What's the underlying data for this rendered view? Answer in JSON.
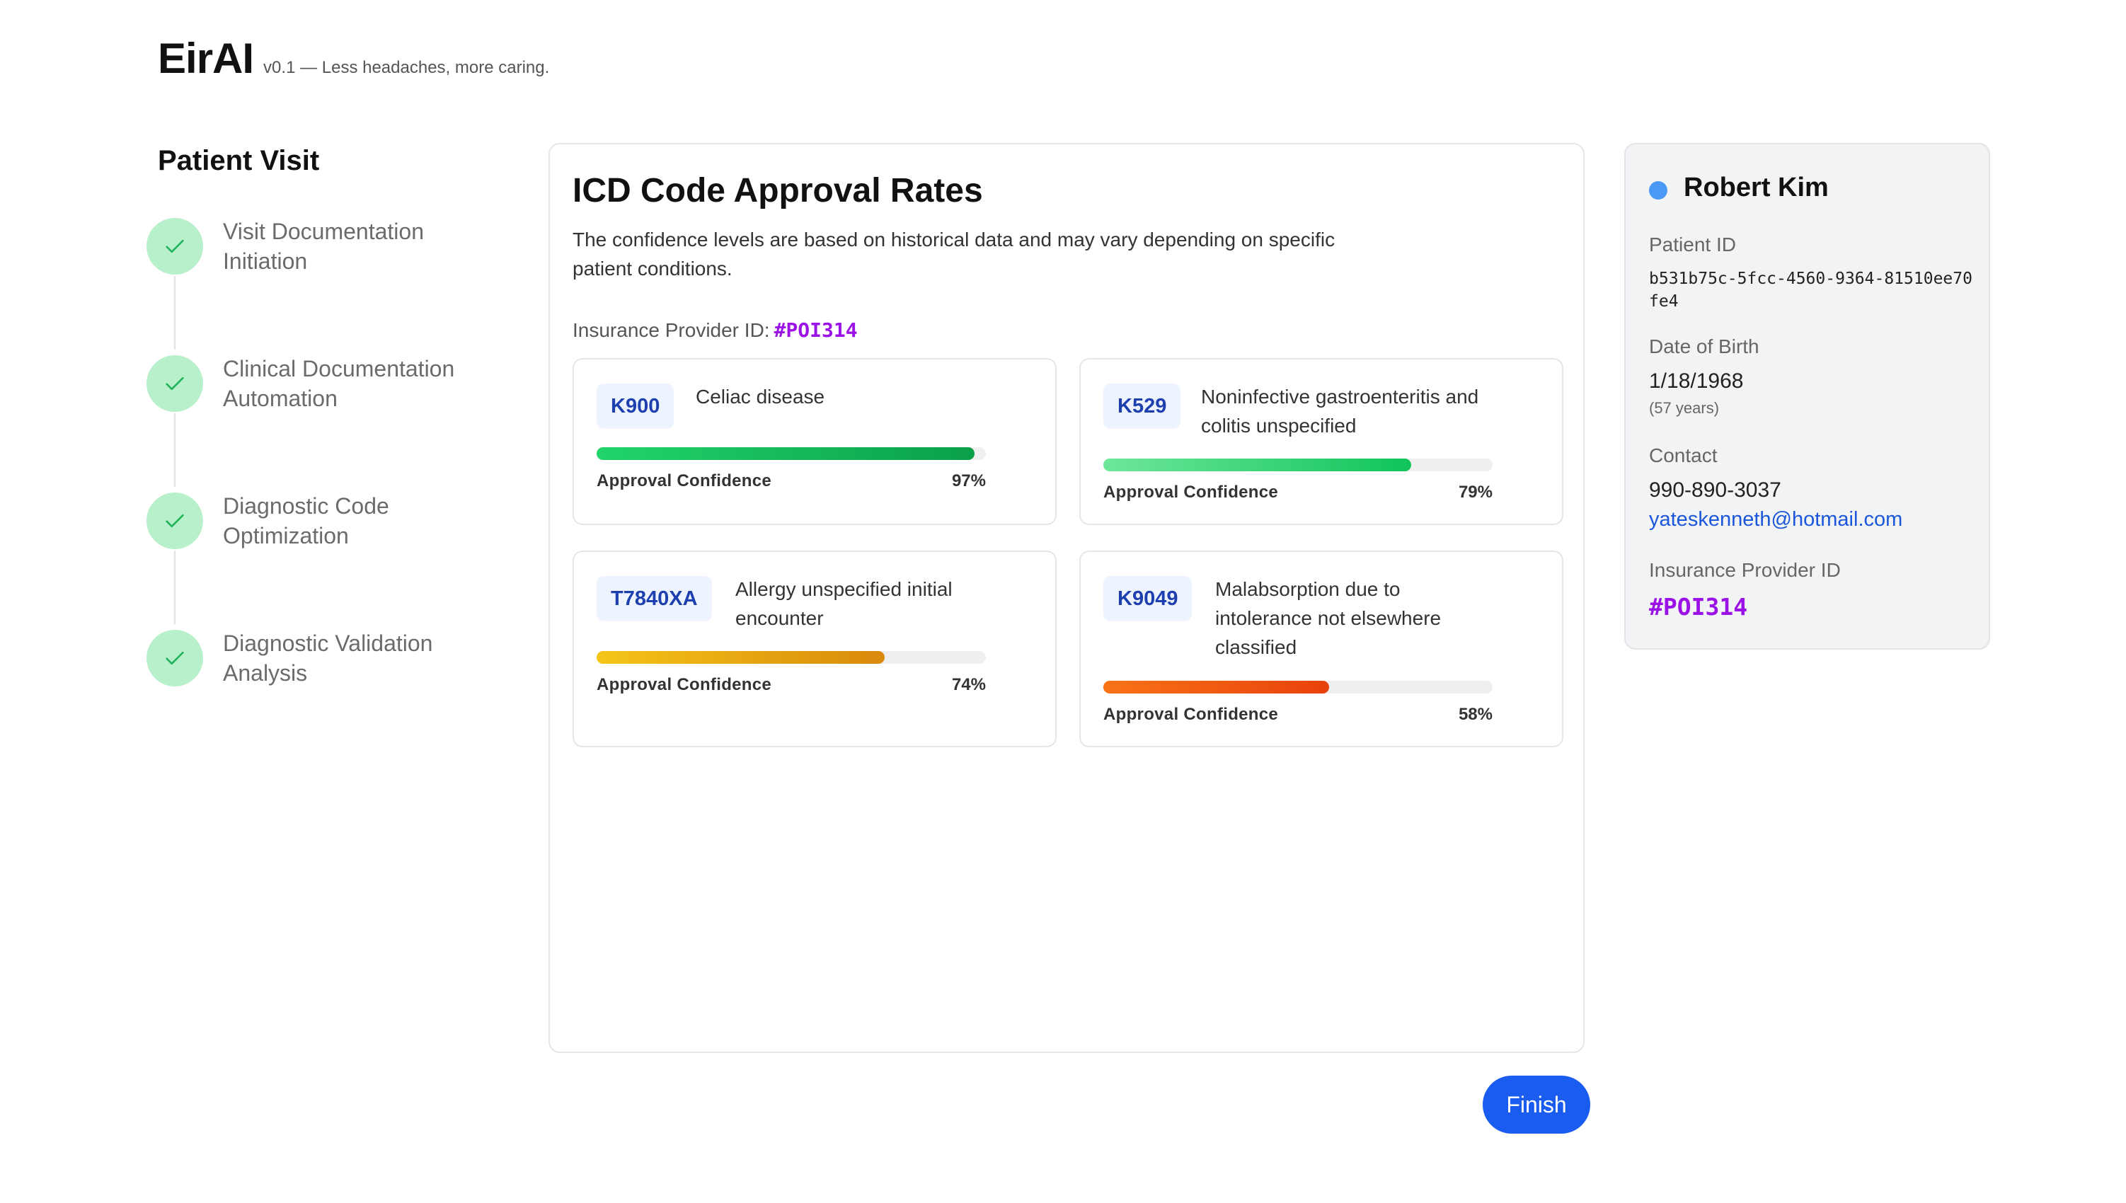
{
  "app": {
    "name": "EirAI",
    "tagline": "v0.1 — Less headaches, more caring."
  },
  "stepper": {
    "title": "Patient Visit",
    "steps": [
      {
        "label": "Visit Documentation Initiation",
        "status": "complete"
      },
      {
        "label": "Clinical Documentation Automation",
        "status": "complete"
      },
      {
        "label": "Diagnostic Code Optimization",
        "status": "complete"
      },
      {
        "label": "Diagnostic Validation Analysis",
        "status": "complete"
      }
    ]
  },
  "main": {
    "title": "ICD Code Approval Rates",
    "description": "The confidence levels are based on historical data and may vary depending on specific patient conditions.",
    "insurance_label": "Insurance Provider ID:",
    "insurance_id": "#POI314",
    "codes": [
      {
        "code": "K900",
        "description": "Celiac disease",
        "confidence_label": "Approval Confidence",
        "confidence_text": "97%",
        "confidence": 0.97,
        "bar_from": "#22d46a",
        "bar_to": "#0aa04a"
      },
      {
        "code": "K529",
        "description": "Noninfective gastroenteritis and colitis unspecified",
        "confidence_label": "Approval Confidence",
        "confidence_text": "79%",
        "confidence": 0.79,
        "bar_from": "#6ee79a",
        "bar_to": "#10c45a"
      },
      {
        "code": "T7840XA",
        "description": "Allergy unspecified initial encounter",
        "confidence_label": "Approval Confidence",
        "confidence_text": "74%",
        "confidence": 0.74,
        "bar_from": "#f5c518",
        "bar_to": "#d98a0b"
      },
      {
        "code": "K9049",
        "description": "Malabsorption due to intolerance not elsewhere classified",
        "confidence_label": "Approval Confidence",
        "confidence_text": "58%",
        "confidence": 0.58,
        "bar_from": "#f97316",
        "bar_to": "#e8410c"
      }
    ]
  },
  "patient": {
    "name": "Robert Kim",
    "status_color": "#4a9af5",
    "patient_id_label": "Patient ID",
    "patient_id": "b531b75c-5fcc-4560-9364-81510ee70fe4",
    "dob_label": "Date of Birth",
    "dob": "1/18/1968",
    "age": "(57 years)",
    "contact_label": "Contact",
    "phone": "990-890-3037",
    "email": "yateskenneth@hotmail.com",
    "insurance_label": "Insurance Provider ID",
    "insurance_id": "#POI314"
  },
  "actions": {
    "finish_label": "Finish"
  },
  "icons": {
    "step_complete": "check-icon",
    "status_dot": "status-dot-icon"
  }
}
